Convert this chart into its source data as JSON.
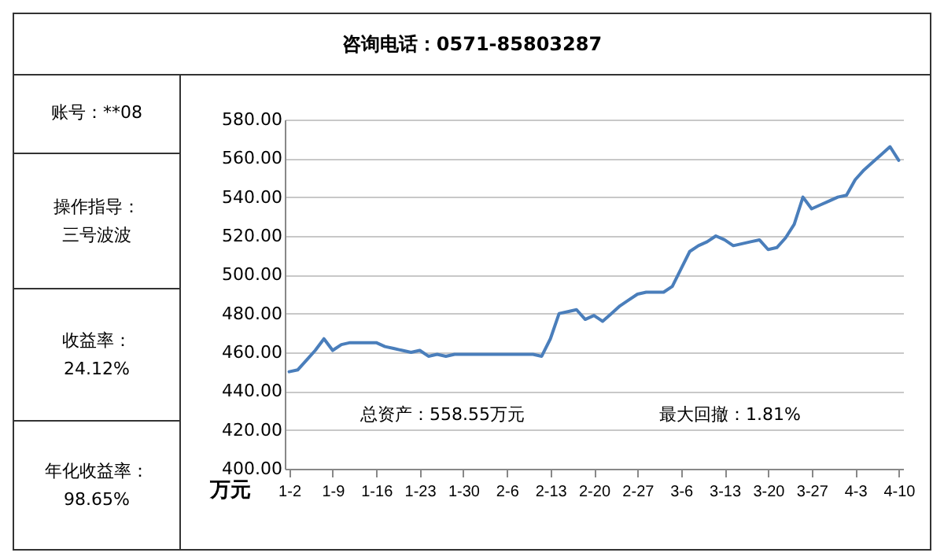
{
  "chart_data": {
    "type": "line",
    "title": "咨询电话：0571-85803287",
    "ylabel": "万元",
    "annotations": [
      "账号：**08",
      "操作指导：",
      "三号波波",
      "收益率：",
      "24.12%",
      "年化收益率：",
      "98.65%",
      "总资产：558.55万元",
      "最大回撤：1.81%"
    ],
    "categories": [
      "1-2",
      null,
      null,
      null,
      null,
      "1-9",
      null,
      null,
      null,
      null,
      "1-16",
      null,
      null,
      null,
      null,
      "1-23",
      null,
      null,
      null,
      null,
      "1-30",
      null,
      null,
      null,
      null,
      "2-6",
      null,
      null,
      null,
      null,
      "2-13",
      null,
      null,
      null,
      null,
      "2-20",
      null,
      null,
      null,
      null,
      "2-27",
      null,
      null,
      null,
      null,
      "3-6",
      null,
      null,
      null,
      null,
      "3-13",
      null,
      null,
      null,
      null,
      "3-20",
      null,
      null,
      null,
      null,
      "3-27",
      null,
      null,
      null,
      null,
      "4-3",
      null,
      null,
      null,
      null,
      "4-10"
    ],
    "series": [
      {
        "color": "#4a7ebb",
        "values": [
          450,
          451,
          456,
          461,
          467,
          461,
          464,
          465,
          465,
          465,
          465,
          463,
          462,
          461,
          460,
          461,
          458,
          459,
          458,
          459,
          459,
          459,
          459,
          459,
          459,
          459,
          459,
          459,
          459,
          458,
          467,
          480,
          481,
          482,
          477,
          479,
          476,
          480,
          484,
          487,
          490,
          491,
          491,
          491,
          494,
          503,
          512,
          515,
          517,
          520,
          518,
          515,
          516,
          517,
          518,
          513,
          514,
          519,
          526,
          540,
          534,
          536,
          538,
          540,
          541,
          549,
          554,
          558,
          562,
          566,
          559
        ]
      }
    ],
    "ylim": [
      400,
      580
    ],
    "yticks": [
      {
        "value": 400,
        "label": "400.00"
      },
      {
        "value": 420,
        "label": "420.00"
      },
      {
        "value": 440,
        "label": "440.00"
      },
      {
        "value": 460,
        "label": "460.00"
      },
      {
        "value": 480,
        "label": "480.00"
      },
      {
        "value": 500,
        "label": "500.00"
      },
      {
        "value": 520,
        "label": "520.00"
      },
      {
        "value": 540,
        "label": "540.00"
      },
      {
        "value": 560,
        "label": "560.00"
      },
      {
        "value": 580,
        "label": "580.00"
      }
    ],
    "grid": "y",
    "marker": "none",
    "line_style": "solid"
  }
}
